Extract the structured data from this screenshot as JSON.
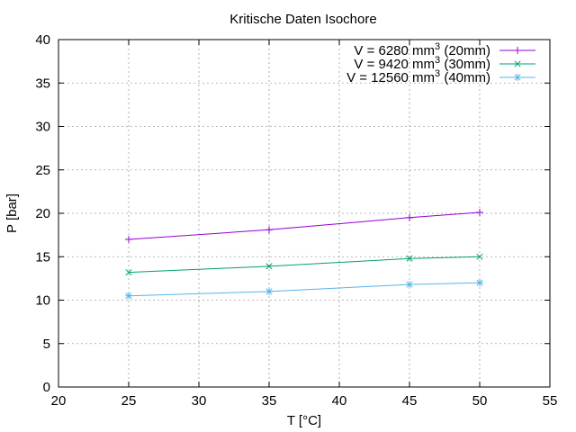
{
  "chart_data": {
    "type": "line",
    "title": "Kritische Daten Isochore",
    "xlabel": "T [°C]",
    "ylabel": "P [bar]",
    "xlim": [
      20,
      55
    ],
    "ylim": [
      0,
      40
    ],
    "xticks": [
      20,
      25,
      30,
      35,
      40,
      45,
      50,
      55
    ],
    "yticks": [
      0,
      5,
      10,
      15,
      20,
      25,
      30,
      35,
      40
    ],
    "grid": true,
    "legend_position": "top-right",
    "series": [
      {
        "name_prefix": "V = 6280 mm",
        "name_sup": "3",
        "name_suffix": " (20mm)",
        "color": "#9400d3",
        "marker": "plus",
        "x": [
          25,
          35,
          45,
          50
        ],
        "y": [
          17.0,
          18.1,
          19.5,
          20.1
        ]
      },
      {
        "name_prefix": "V = 9420 mm",
        "name_sup": "3",
        "name_suffix": " (30mm)",
        "color": "#009e73",
        "marker": "cross",
        "x": [
          25,
          35,
          45,
          50
        ],
        "y": [
          13.2,
          13.9,
          14.8,
          15.0
        ]
      },
      {
        "name_prefix": "V = 12560 mm",
        "name_sup": "3",
        "name_suffix": " (40mm)",
        "color": "#56b4e9",
        "marker": "star",
        "x": [
          25,
          35,
          45,
          50
        ],
        "y": [
          10.5,
          11.0,
          11.8,
          12.0
        ]
      }
    ]
  }
}
